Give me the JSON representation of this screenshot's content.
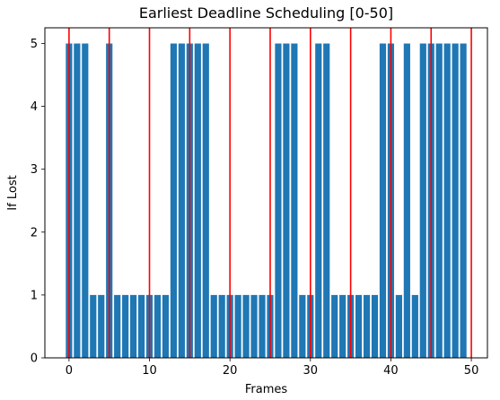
{
  "chart_data": {
    "type": "bar",
    "title": "Earliest Deadline Scheduling [0-50]",
    "xlabel": "Frames",
    "ylabel": "If Lost",
    "x": [
      0,
      1,
      2,
      3,
      4,
      5,
      6,
      7,
      8,
      9,
      10,
      11,
      12,
      13,
      14,
      15,
      16,
      17,
      18,
      19,
      20,
      21,
      22,
      23,
      24,
      25,
      26,
      27,
      28,
      29,
      30,
      31,
      32,
      33,
      34,
      35,
      36,
      37,
      38,
      39,
      40,
      41,
      42,
      43,
      44,
      45,
      46,
      47,
      48,
      49
    ],
    "values": [
      5,
      5,
      5,
      1,
      1,
      5,
      1,
      1,
      1,
      1,
      1,
      1,
      1,
      5,
      5,
      5,
      5,
      5,
      1,
      1,
      1,
      1,
      1,
      1,
      1,
      1,
      5,
      5,
      5,
      1,
      1,
      5,
      5,
      1,
      1,
      1,
      1,
      1,
      1,
      5,
      5,
      1,
      5,
      1,
      5,
      5,
      5,
      5,
      5,
      5
    ],
    "xlim": [
      -3,
      52
    ],
    "ylim": [
      0,
      5.25
    ],
    "xticks": [
      0,
      10,
      20,
      30,
      40,
      50
    ],
    "yticks": [
      0,
      1,
      2,
      3,
      4,
      5
    ],
    "deadlines": [
      0,
      5,
      10,
      15,
      20,
      25,
      30,
      35,
      40,
      45,
      50
    ],
    "bar_color": "#1f77b4",
    "deadline_color": "#ff0000",
    "grid": false
  }
}
